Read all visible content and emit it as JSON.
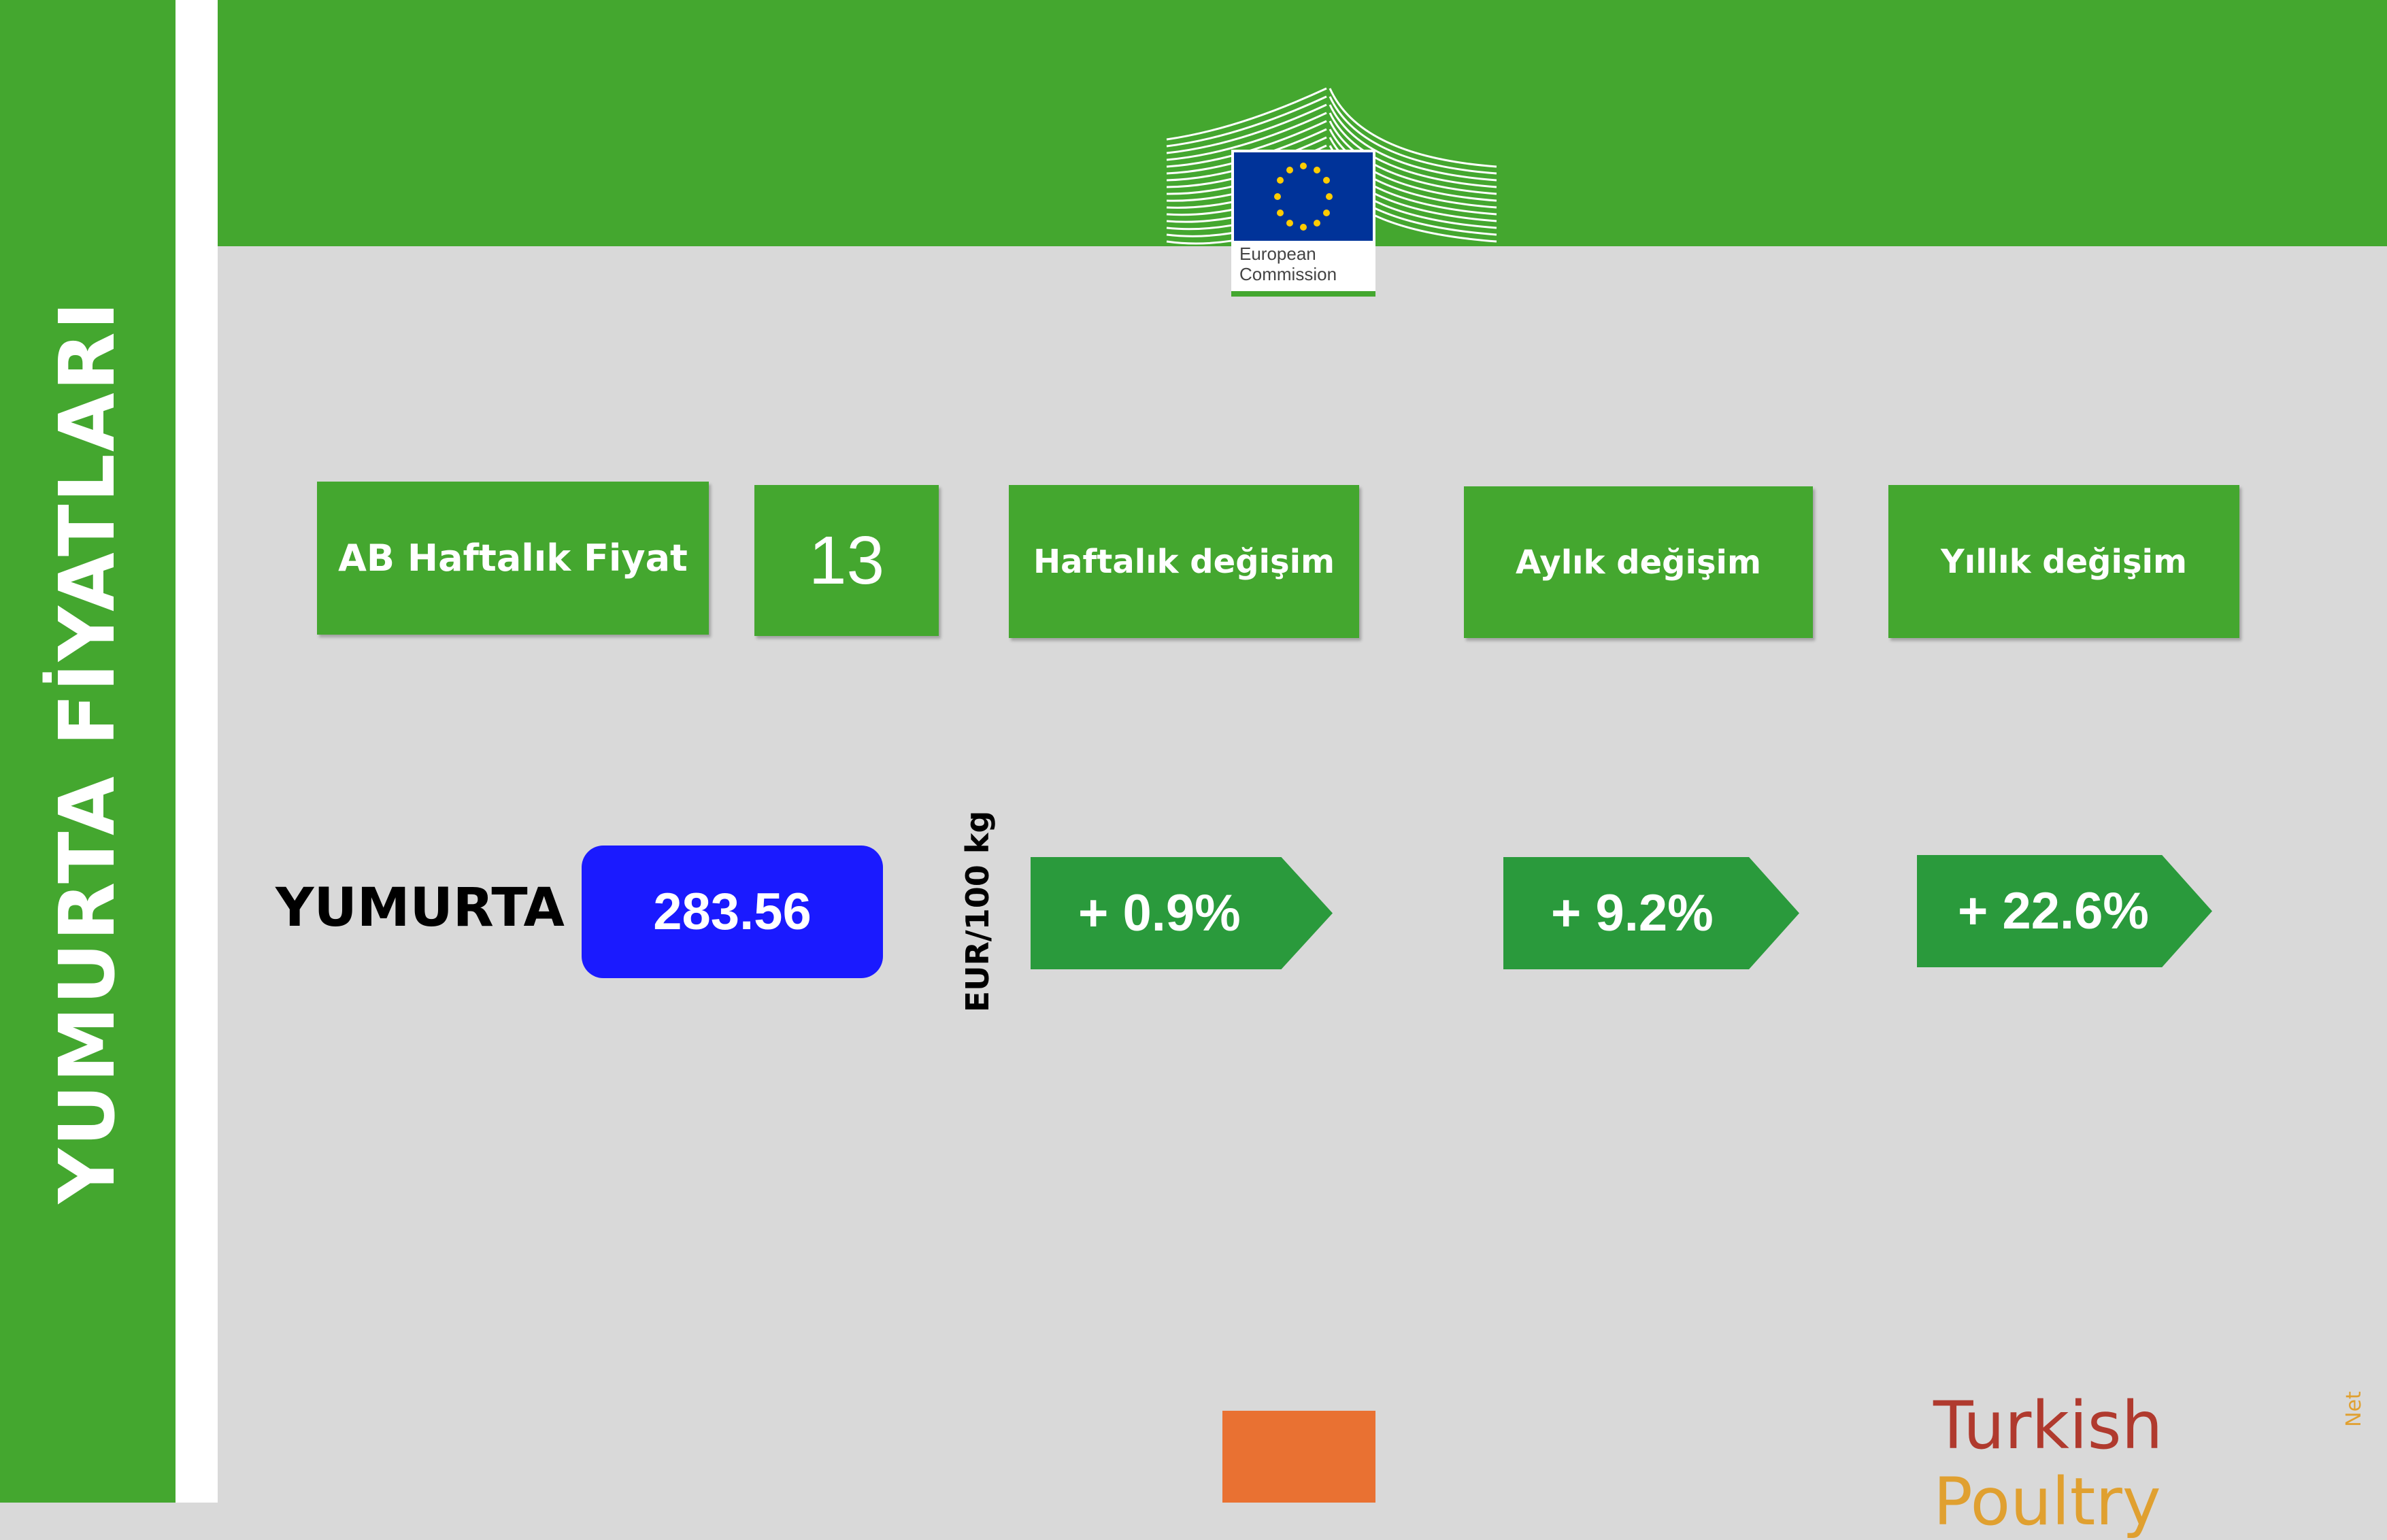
{
  "sidebar": {
    "title": "YUMURTA FİYATLARI"
  },
  "logo": {
    "line1": "European",
    "line2": "Commission"
  },
  "headers": {
    "price": "AB Haftalık Fiyat",
    "week": "13",
    "weekly": "Haftalık değişim",
    "monthly": "Aylık değişim",
    "yearly": "Yıllık değişim"
  },
  "row": {
    "product": "YUMURTA",
    "price": "283.56",
    "unit": "EUR/100 kg",
    "weekly_change": "+ 0.9%",
    "monthly_change": "+ 9.2%",
    "yearly_change": "+ 22.6%"
  },
  "brand": {
    "part1": "Turkish ",
    "part2": "Poultry",
    "suffix": "Net"
  },
  "colors": {
    "green": "#44a72f",
    "arrow_green": "#2a9a3c",
    "price_blue": "#1a1aff",
    "orange": "#e97132",
    "eu_blue": "#003399",
    "eu_gold": "#ffcc00"
  }
}
